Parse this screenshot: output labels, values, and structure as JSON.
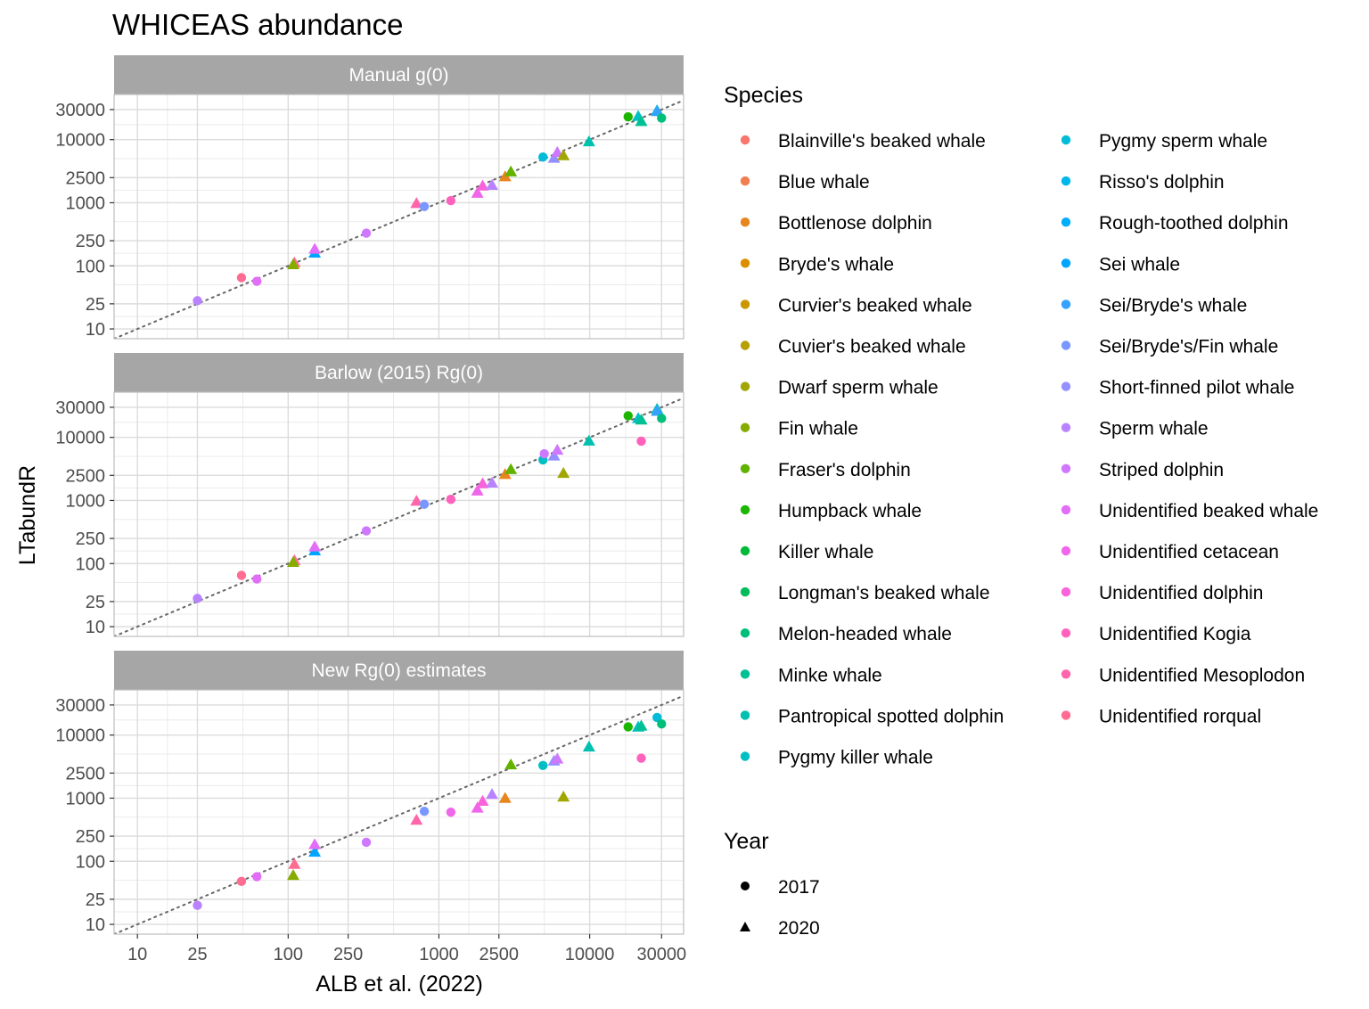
{
  "chart_data": {
    "type": "scatter",
    "title": "WHICEAS abundance",
    "xlabel": "ALB et al. (2022)",
    "ylabel": "LTabundR",
    "x_scale": "log10",
    "y_scale": "log10",
    "x_ticks": [
      "10",
      "25",
      "100",
      "250",
      "1000",
      "2500",
      "10000",
      "30000"
    ],
    "y_ticks": [
      "10",
      "25",
      "100",
      "250",
      "1000",
      "2500",
      "10000",
      "30000"
    ],
    "xlim": [
      7,
      42000
    ],
    "ylim": [
      7,
      52000
    ],
    "grid": true,
    "reference_line": "y = x (dotted)",
    "legend_position": "right",
    "legend": {
      "species_title": "Species",
      "year_title": "Year",
      "species": [
        {
          "name": "Blainville's beaked whale",
          "color": "#F8766D"
        },
        {
          "name": "Blue whale",
          "color": "#F17D50"
        },
        {
          "name": "Bottlenose dolphin",
          "color": "#E7851E"
        },
        {
          "name": "Bryde's whale",
          "color": "#DA8E00"
        },
        {
          "name": "Curvier's beaked whale",
          "color": "#CA9700"
        },
        {
          "name": "Cuvier's beaked whale",
          "color": "#B79F00"
        },
        {
          "name": "Dwarf sperm whale",
          "color": "#A1A600"
        },
        {
          "name": "Fin whale",
          "color": "#86AC00"
        },
        {
          "name": "Fraser's dolphin",
          "color": "#62B200"
        },
        {
          "name": "Humpback whale",
          "color": "#1CB600"
        },
        {
          "name": "Killer whale",
          "color": "#00BA38"
        },
        {
          "name": "Longman's beaked whale",
          "color": "#00BC5B"
        },
        {
          "name": "Melon-headed whale",
          "color": "#00BF7A"
        },
        {
          "name": "Minke whale",
          "color": "#00C094"
        },
        {
          "name": "Pantropical spotted dolphin",
          "color": "#00C0AF"
        },
        {
          "name": "Pygmy killer whale",
          "color": "#00BFC4"
        },
        {
          "name": "Pygmy sperm whale",
          "color": "#00BCD8"
        },
        {
          "name": "Risso's dolphin",
          "color": "#00B6EB"
        },
        {
          "name": "Rough-toothed dolphin",
          "color": "#00ADFA"
        },
        {
          "name": "Sei whale",
          "color": "#00A5FF"
        },
        {
          "name": "Sei/Bryde's whale",
          "color": "#35A2FF"
        },
        {
          "name": "Sei/Bryde's/Fin whale",
          "color": "#7997FF"
        },
        {
          "name": "Short-finned pilot whale",
          "color": "#9590FF"
        },
        {
          "name": "Sperm whale",
          "color": "#B983FF"
        },
        {
          "name": "Striped dolphin",
          "color": "#CF78FF"
        },
        {
          "name": "Unidentified beaked whale",
          "color": "#E26EF7"
        },
        {
          "name": "Unidentified cetacean",
          "color": "#F066EA"
        },
        {
          "name": "Unidentified dolphin",
          "color": "#FA62DB"
        },
        {
          "name": "Unidentified Kogia",
          "color": "#FF62BC"
        },
        {
          "name": "Unidentified Mesoplodon",
          "color": "#FF65AB"
        },
        {
          "name": "Unidentified rorqual",
          "color": "#FF6C91"
        }
      ],
      "years": [
        {
          "name": "2017",
          "shape": "circle"
        },
        {
          "name": "2020",
          "shape": "triangle"
        }
      ]
    },
    "panels": [
      {
        "label": "Manual g(0)",
        "points": [
          {
            "x": 25,
            "y": 28,
            "shape": "circle",
            "color": "#B983FF"
          },
          {
            "x": 49,
            "y": 65,
            "shape": "circle",
            "color": "#FF6C91"
          },
          {
            "x": 62,
            "y": 57,
            "shape": "circle",
            "color": "#E26EF7"
          },
          {
            "x": 110,
            "y": 112,
            "shape": "triangle",
            "color": "#FF6C91"
          },
          {
            "x": 108,
            "y": 105,
            "shape": "triangle",
            "color": "#86AC00"
          },
          {
            "x": 150,
            "y": 160,
            "shape": "triangle",
            "color": "#00A5FF"
          },
          {
            "x": 150,
            "y": 185,
            "shape": "triangle",
            "color": "#E26EF7"
          },
          {
            "x": 330,
            "y": 330,
            "shape": "circle",
            "color": "#CF78FF"
          },
          {
            "x": 710,
            "y": 980,
            "shape": "triangle",
            "color": "#FF65AB"
          },
          {
            "x": 800,
            "y": 870,
            "shape": "circle",
            "color": "#7997FF"
          },
          {
            "x": 1200,
            "y": 1080,
            "shape": "circle",
            "color": "#FF62BC"
          },
          {
            "x": 1800,
            "y": 1420,
            "shape": "triangle",
            "color": "#F066EA"
          },
          {
            "x": 1950,
            "y": 1850,
            "shape": "triangle",
            "color": "#FA62DB"
          },
          {
            "x": 2250,
            "y": 1900,
            "shape": "triangle",
            "color": "#B983FF"
          },
          {
            "x": 2750,
            "y": 2600,
            "shape": "triangle",
            "color": "#E7851E"
          },
          {
            "x": 3000,
            "y": 3100,
            "shape": "triangle",
            "color": "#62B200"
          },
          {
            "x": 4900,
            "y": 5300,
            "shape": "circle",
            "color": "#00BCD8"
          },
          {
            "x": 5800,
            "y": 5100,
            "shape": "triangle",
            "color": "#9590FF"
          },
          {
            "x": 6100,
            "y": 6300,
            "shape": "triangle",
            "color": "#CF78FF"
          },
          {
            "x": 6700,
            "y": 5600,
            "shape": "triangle",
            "color": "#A1A600"
          },
          {
            "x": 9900,
            "y": 9300,
            "shape": "triangle",
            "color": "#00C0AF"
          },
          {
            "x": 18000,
            "y": 23000,
            "shape": "circle",
            "color": "#1CB600"
          },
          {
            "x": 21000,
            "y": 23500,
            "shape": "triangle",
            "color": "#00BFC4"
          },
          {
            "x": 22000,
            "y": 19500,
            "shape": "triangle",
            "color": "#00C094"
          },
          {
            "x": 28000,
            "y": 29000,
            "shape": "triangle",
            "color": "#00BFC4"
          },
          {
            "x": 28000,
            "y": 28000,
            "shape": "triangle",
            "color": "#35A2FF"
          },
          {
            "x": 30000,
            "y": 22000,
            "shape": "circle",
            "color": "#00BF7A"
          }
        ]
      },
      {
        "label": "Barlow (2015) Rg(0)",
        "points": [
          {
            "x": 25,
            "y": 28,
            "shape": "circle",
            "color": "#B983FF"
          },
          {
            "x": 49,
            "y": 65,
            "shape": "circle",
            "color": "#FF6C91"
          },
          {
            "x": 62,
            "y": 57,
            "shape": "circle",
            "color": "#E26EF7"
          },
          {
            "x": 110,
            "y": 112,
            "shape": "triangle",
            "color": "#FF6C91"
          },
          {
            "x": 108,
            "y": 105,
            "shape": "triangle",
            "color": "#86AC00"
          },
          {
            "x": 150,
            "y": 160,
            "shape": "triangle",
            "color": "#00A5FF"
          },
          {
            "x": 150,
            "y": 185,
            "shape": "triangle",
            "color": "#E26EF7"
          },
          {
            "x": 330,
            "y": 330,
            "shape": "circle",
            "color": "#CF78FF"
          },
          {
            "x": 710,
            "y": 980,
            "shape": "triangle",
            "color": "#FF65AB"
          },
          {
            "x": 800,
            "y": 870,
            "shape": "circle",
            "color": "#7997FF"
          },
          {
            "x": 1200,
            "y": 1040,
            "shape": "circle",
            "color": "#FF62BC"
          },
          {
            "x": 1800,
            "y": 1420,
            "shape": "triangle",
            "color": "#F066EA"
          },
          {
            "x": 1950,
            "y": 1850,
            "shape": "triangle",
            "color": "#FA62DB"
          },
          {
            "x": 2250,
            "y": 1900,
            "shape": "triangle",
            "color": "#B983FF"
          },
          {
            "x": 2750,
            "y": 2600,
            "shape": "triangle",
            "color": "#E7851E"
          },
          {
            "x": 3000,
            "y": 3100,
            "shape": "triangle",
            "color": "#62B200"
          },
          {
            "x": 4900,
            "y": 4400,
            "shape": "circle",
            "color": "#00BFC4"
          },
          {
            "x": 5000,
            "y": 5500,
            "shape": "circle",
            "color": "#CF78FF"
          },
          {
            "x": 5800,
            "y": 5100,
            "shape": "triangle",
            "color": "#9590FF"
          },
          {
            "x": 6100,
            "y": 6300,
            "shape": "triangle",
            "color": "#CF78FF"
          },
          {
            "x": 6700,
            "y": 2700,
            "shape": "triangle",
            "color": "#A1A600"
          },
          {
            "x": 9900,
            "y": 8800,
            "shape": "triangle",
            "color": "#00C0AF"
          },
          {
            "x": 18000,
            "y": 22000,
            "shape": "circle",
            "color": "#1CB600"
          },
          {
            "x": 21000,
            "y": 20000,
            "shape": "triangle",
            "color": "#00BFC4"
          },
          {
            "x": 22000,
            "y": 19000,
            "shape": "triangle",
            "color": "#00C094"
          },
          {
            "x": 22000,
            "y": 8700,
            "shape": "circle",
            "color": "#FF62BC"
          },
          {
            "x": 28000,
            "y": 28000,
            "shape": "triangle",
            "color": "#00BFC4"
          },
          {
            "x": 28000,
            "y": 26000,
            "shape": "triangle",
            "color": "#35A2FF"
          },
          {
            "x": 30000,
            "y": 20000,
            "shape": "circle",
            "color": "#00BF7A"
          }
        ]
      },
      {
        "label": "New Rg(0) estimates",
        "points": [
          {
            "x": 25,
            "y": 20,
            "shape": "circle",
            "color": "#B983FF"
          },
          {
            "x": 49,
            "y": 48,
            "shape": "circle",
            "color": "#FF6C91"
          },
          {
            "x": 62,
            "y": 57,
            "shape": "circle",
            "color": "#E26EF7"
          },
          {
            "x": 110,
            "y": 90,
            "shape": "triangle",
            "color": "#FF6C91"
          },
          {
            "x": 108,
            "y": 60,
            "shape": "triangle",
            "color": "#86AC00"
          },
          {
            "x": 150,
            "y": 140,
            "shape": "triangle",
            "color": "#00A5FF"
          },
          {
            "x": 150,
            "y": 185,
            "shape": "triangle",
            "color": "#E26EF7"
          },
          {
            "x": 330,
            "y": 200,
            "shape": "circle",
            "color": "#CF78FF"
          },
          {
            "x": 710,
            "y": 450,
            "shape": "triangle",
            "color": "#FF65AB"
          },
          {
            "x": 800,
            "y": 620,
            "shape": "circle",
            "color": "#7997FF"
          },
          {
            "x": 1200,
            "y": 600,
            "shape": "circle",
            "color": "#F066EA"
          },
          {
            "x": 1800,
            "y": 700,
            "shape": "triangle",
            "color": "#F066EA"
          },
          {
            "x": 1950,
            "y": 900,
            "shape": "triangle",
            "color": "#FA62DB"
          },
          {
            "x": 2250,
            "y": 1150,
            "shape": "triangle",
            "color": "#B983FF"
          },
          {
            "x": 2750,
            "y": 1000,
            "shape": "triangle",
            "color": "#E7851E"
          },
          {
            "x": 3000,
            "y": 3400,
            "shape": "triangle",
            "color": "#62B200"
          },
          {
            "x": 4900,
            "y": 3300,
            "shape": "circle",
            "color": "#00BFC4"
          },
          {
            "x": 5800,
            "y": 3900,
            "shape": "triangle",
            "color": "#9590FF"
          },
          {
            "x": 6100,
            "y": 4200,
            "shape": "triangle",
            "color": "#CF78FF"
          },
          {
            "x": 6700,
            "y": 1050,
            "shape": "triangle",
            "color": "#A1A600"
          },
          {
            "x": 9900,
            "y": 6500,
            "shape": "triangle",
            "color": "#00C0AF"
          },
          {
            "x": 18000,
            "y": 13500,
            "shape": "circle",
            "color": "#1CB600"
          },
          {
            "x": 21000,
            "y": 13500,
            "shape": "triangle",
            "color": "#00BFC4"
          },
          {
            "x": 22000,
            "y": 14000,
            "shape": "triangle",
            "color": "#00C094"
          },
          {
            "x": 22000,
            "y": 4300,
            "shape": "circle",
            "color": "#FF62BC"
          },
          {
            "x": 28000,
            "y": 19000,
            "shape": "circle",
            "color": "#00BCD8"
          },
          {
            "x": 30000,
            "y": 15000,
            "shape": "circle",
            "color": "#00BF7A"
          }
        ]
      }
    ]
  }
}
